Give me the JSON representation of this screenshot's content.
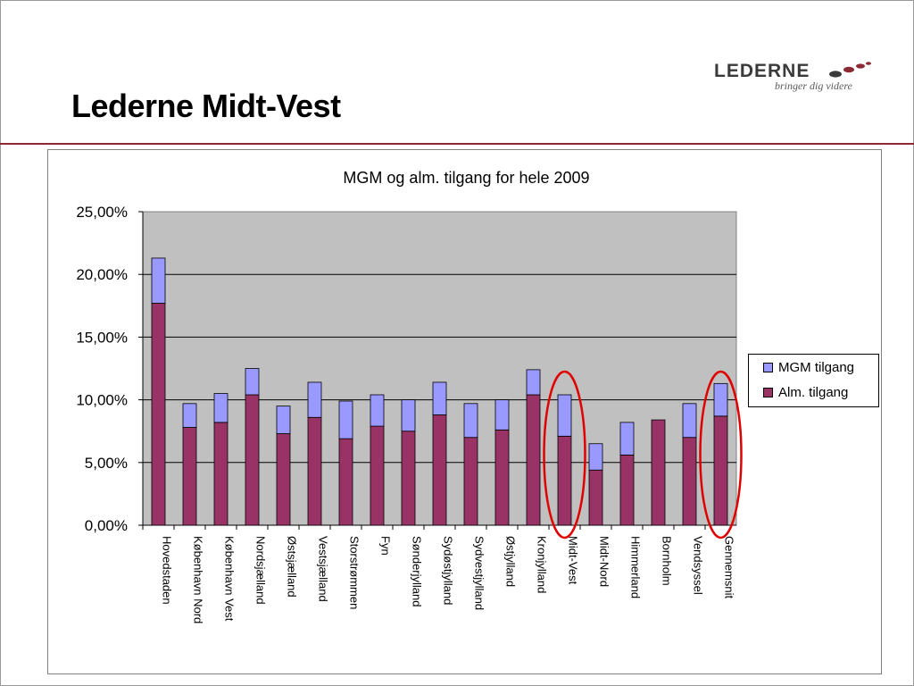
{
  "slide": {
    "title": "Lederne Midt-Vest"
  },
  "logo": {
    "name": "LEDERNE",
    "tagline": "bringer dig videre",
    "colors": {
      "text": "#3a3a3a",
      "dots": "#8b2a33"
    }
  },
  "colors": {
    "accent_rule": "#8b2a33",
    "plot_background": "#c0c0c0",
    "mgm": "#9999ff",
    "alm": "#993366",
    "highlight": "#e00000"
  },
  "chart_data": {
    "type": "bar",
    "stacked": true,
    "title": "MGM og alm. tilgang for hele 2009",
    "xlabel": "",
    "ylabel": "",
    "ylim": [
      0,
      0.25
    ],
    "yticks": [
      "25,00%",
      "20,00%",
      "15,00%",
      "10,00%",
      "5,00%",
      "0,00%"
    ],
    "ytick_values": [
      0.25,
      0.2,
      0.15,
      0.1,
      0.05,
      0.0
    ],
    "grid": true,
    "legend_position": "right",
    "categories": [
      "Hovedstaden",
      "København Nord",
      "København Vest",
      "Nordsjælland",
      "Østsjælland",
      "Vestsjælland",
      "Storstrømmen",
      "Fyn",
      "Sønderjylland",
      "Sydøstjylland",
      "Sydvestjylland",
      "Østjylland",
      "Kronjylland",
      "Midt-Vest",
      "Midt-Nord",
      "Himmerland",
      "Bornholm",
      "Vendsyssel",
      "Gennemsnit"
    ],
    "series": [
      {
        "name": "Alm. tilgang",
        "color": "#993366",
        "values": [
          0.177,
          0.078,
          0.082,
          0.104,
          0.073,
          0.086,
          0.069,
          0.079,
          0.075,
          0.088,
          0.07,
          0.076,
          0.104,
          0.071,
          0.044,
          0.056,
          0.084,
          0.07,
          0.087
        ]
      },
      {
        "name": "MGM tilgang",
        "color": "#9999ff",
        "values": [
          0.036,
          0.019,
          0.023,
          0.021,
          0.022,
          0.028,
          0.03,
          0.025,
          0.025,
          0.026,
          0.027,
          0.024,
          0.02,
          0.033,
          0.021,
          0.026,
          0.0,
          0.027,
          0.026
        ]
      }
    ],
    "highlighted_categories": [
      "Midt-Vest",
      "Gennemsnit"
    ]
  }
}
